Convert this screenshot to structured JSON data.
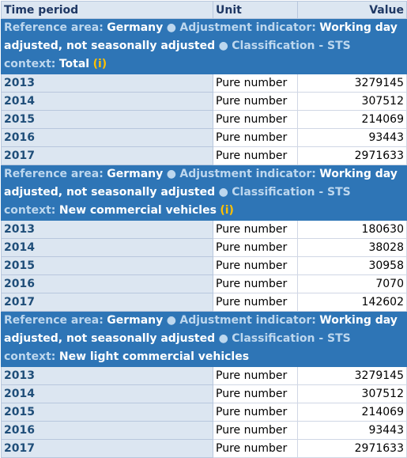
{
  "header": {
    "time_period": "Time period",
    "unit": "Unit",
    "value": "Value"
  },
  "groups": [
    {
      "ref_area_label": "Reference area:",
      "ref_area_value": "Germany",
      "separator": "●",
      "adj_label": "Adjustment indicator:",
      "adj_value": "Working day adjusted, not seasonally adjusted",
      "class_label": "Classification - STS context:",
      "class_value": "Total",
      "info": "(i)",
      "rows": [
        {
          "year": "2013",
          "unit": "Pure number",
          "value": "3279145"
        },
        {
          "year": "2014",
          "unit": "Pure number",
          "value": "307512"
        },
        {
          "year": "2015",
          "unit": "Pure number",
          "value": "214069"
        },
        {
          "year": "2016",
          "unit": "Pure number",
          "value": "93443"
        },
        {
          "year": "2017",
          "unit": "Pure number",
          "value": "2971633"
        }
      ]
    },
    {
      "ref_area_label": "Reference area:",
      "ref_area_value": "Germany",
      "separator": "●",
      "adj_label": "Adjustment indicator:",
      "adj_value": "Working day adjusted, not seasonally adjusted",
      "class_label": "Classification - STS context:",
      "class_value": "New commercial vehicles",
      "info": "(i)",
      "rows": [
        {
          "year": "2013",
          "unit": "Pure number",
          "value": "180630"
        },
        {
          "year": "2014",
          "unit": "Pure number",
          "value": "38028"
        },
        {
          "year": "2015",
          "unit": "Pure number",
          "value": "30958"
        },
        {
          "year": "2016",
          "unit": "Pure number",
          "value": "7070"
        },
        {
          "year": "2017",
          "unit": "Pure number",
          "value": "142602"
        }
      ]
    },
    {
      "ref_area_label": "Reference area:",
      "ref_area_value": "Germany",
      "separator": "●",
      "adj_label": "Adjustment indicator:",
      "adj_value": "Working day adjusted, not seasonally adjusted",
      "class_label": "Classification - STS context:",
      "class_value": "New light commercial vehicles",
      "info": "",
      "rows": [
        {
          "year": "2013",
          "unit": "Pure number",
          "value": "3279145"
        },
        {
          "year": "2014",
          "unit": "Pure number",
          "value": "307512"
        },
        {
          "year": "2015",
          "unit": "Pure number",
          "value": "214069"
        },
        {
          "year": "2016",
          "unit": "Pure number",
          "value": "93443"
        },
        {
          "year": "2017",
          "unit": "Pure number",
          "value": "2971633"
        }
      ]
    }
  ]
}
